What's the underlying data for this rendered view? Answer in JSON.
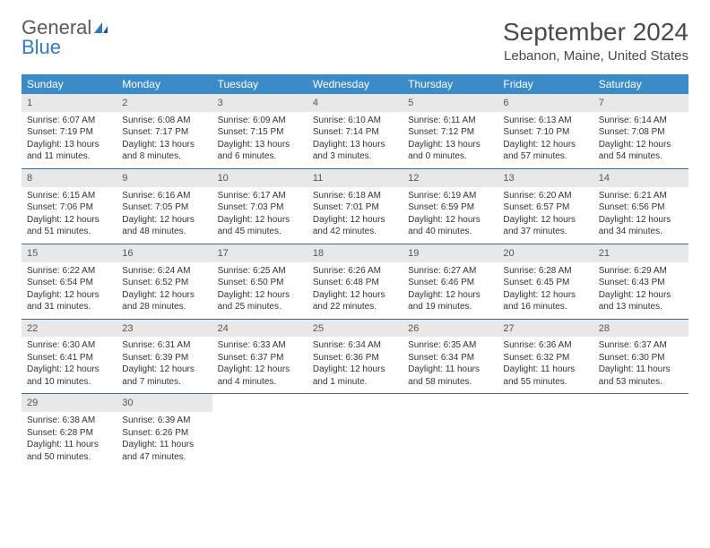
{
  "logo": {
    "text1": "General",
    "text2": "Blue"
  },
  "title": "September 2024",
  "location": "Lebanon, Maine, United States",
  "colors": {
    "header_bg": "#3b8bc9",
    "header_text": "#ffffff",
    "daynum_bg": "#e8e8e8",
    "rule": "#3b6a94",
    "logo_gray": "#5a5a5a",
    "logo_blue": "#2e7cbf"
  },
  "day_names": [
    "Sunday",
    "Monday",
    "Tuesday",
    "Wednesday",
    "Thursday",
    "Friday",
    "Saturday"
  ],
  "weeks": [
    [
      {
        "n": "1",
        "sr": "Sunrise: 6:07 AM",
        "ss": "Sunset: 7:19 PM",
        "dl": "Daylight: 13 hours and 11 minutes."
      },
      {
        "n": "2",
        "sr": "Sunrise: 6:08 AM",
        "ss": "Sunset: 7:17 PM",
        "dl": "Daylight: 13 hours and 8 minutes."
      },
      {
        "n": "3",
        "sr": "Sunrise: 6:09 AM",
        "ss": "Sunset: 7:15 PM",
        "dl": "Daylight: 13 hours and 6 minutes."
      },
      {
        "n": "4",
        "sr": "Sunrise: 6:10 AM",
        "ss": "Sunset: 7:14 PM",
        "dl": "Daylight: 13 hours and 3 minutes."
      },
      {
        "n": "5",
        "sr": "Sunrise: 6:11 AM",
        "ss": "Sunset: 7:12 PM",
        "dl": "Daylight: 13 hours and 0 minutes."
      },
      {
        "n": "6",
        "sr": "Sunrise: 6:13 AM",
        "ss": "Sunset: 7:10 PM",
        "dl": "Daylight: 12 hours and 57 minutes."
      },
      {
        "n": "7",
        "sr": "Sunrise: 6:14 AM",
        "ss": "Sunset: 7:08 PM",
        "dl": "Daylight: 12 hours and 54 minutes."
      }
    ],
    [
      {
        "n": "8",
        "sr": "Sunrise: 6:15 AM",
        "ss": "Sunset: 7:06 PM",
        "dl": "Daylight: 12 hours and 51 minutes."
      },
      {
        "n": "9",
        "sr": "Sunrise: 6:16 AM",
        "ss": "Sunset: 7:05 PM",
        "dl": "Daylight: 12 hours and 48 minutes."
      },
      {
        "n": "10",
        "sr": "Sunrise: 6:17 AM",
        "ss": "Sunset: 7:03 PM",
        "dl": "Daylight: 12 hours and 45 minutes."
      },
      {
        "n": "11",
        "sr": "Sunrise: 6:18 AM",
        "ss": "Sunset: 7:01 PM",
        "dl": "Daylight: 12 hours and 42 minutes."
      },
      {
        "n": "12",
        "sr": "Sunrise: 6:19 AM",
        "ss": "Sunset: 6:59 PM",
        "dl": "Daylight: 12 hours and 40 minutes."
      },
      {
        "n": "13",
        "sr": "Sunrise: 6:20 AM",
        "ss": "Sunset: 6:57 PM",
        "dl": "Daylight: 12 hours and 37 minutes."
      },
      {
        "n": "14",
        "sr": "Sunrise: 6:21 AM",
        "ss": "Sunset: 6:56 PM",
        "dl": "Daylight: 12 hours and 34 minutes."
      }
    ],
    [
      {
        "n": "15",
        "sr": "Sunrise: 6:22 AM",
        "ss": "Sunset: 6:54 PM",
        "dl": "Daylight: 12 hours and 31 minutes."
      },
      {
        "n": "16",
        "sr": "Sunrise: 6:24 AM",
        "ss": "Sunset: 6:52 PM",
        "dl": "Daylight: 12 hours and 28 minutes."
      },
      {
        "n": "17",
        "sr": "Sunrise: 6:25 AM",
        "ss": "Sunset: 6:50 PM",
        "dl": "Daylight: 12 hours and 25 minutes."
      },
      {
        "n": "18",
        "sr": "Sunrise: 6:26 AM",
        "ss": "Sunset: 6:48 PM",
        "dl": "Daylight: 12 hours and 22 minutes."
      },
      {
        "n": "19",
        "sr": "Sunrise: 6:27 AM",
        "ss": "Sunset: 6:46 PM",
        "dl": "Daylight: 12 hours and 19 minutes."
      },
      {
        "n": "20",
        "sr": "Sunrise: 6:28 AM",
        "ss": "Sunset: 6:45 PM",
        "dl": "Daylight: 12 hours and 16 minutes."
      },
      {
        "n": "21",
        "sr": "Sunrise: 6:29 AM",
        "ss": "Sunset: 6:43 PM",
        "dl": "Daylight: 12 hours and 13 minutes."
      }
    ],
    [
      {
        "n": "22",
        "sr": "Sunrise: 6:30 AM",
        "ss": "Sunset: 6:41 PM",
        "dl": "Daylight: 12 hours and 10 minutes."
      },
      {
        "n": "23",
        "sr": "Sunrise: 6:31 AM",
        "ss": "Sunset: 6:39 PM",
        "dl": "Daylight: 12 hours and 7 minutes."
      },
      {
        "n": "24",
        "sr": "Sunrise: 6:33 AM",
        "ss": "Sunset: 6:37 PM",
        "dl": "Daylight: 12 hours and 4 minutes."
      },
      {
        "n": "25",
        "sr": "Sunrise: 6:34 AM",
        "ss": "Sunset: 6:36 PM",
        "dl": "Daylight: 12 hours and 1 minute."
      },
      {
        "n": "26",
        "sr": "Sunrise: 6:35 AM",
        "ss": "Sunset: 6:34 PM",
        "dl": "Daylight: 11 hours and 58 minutes."
      },
      {
        "n": "27",
        "sr": "Sunrise: 6:36 AM",
        "ss": "Sunset: 6:32 PM",
        "dl": "Daylight: 11 hours and 55 minutes."
      },
      {
        "n": "28",
        "sr": "Sunrise: 6:37 AM",
        "ss": "Sunset: 6:30 PM",
        "dl": "Daylight: 11 hours and 53 minutes."
      }
    ],
    [
      {
        "n": "29",
        "sr": "Sunrise: 6:38 AM",
        "ss": "Sunset: 6:28 PM",
        "dl": "Daylight: 11 hours and 50 minutes."
      },
      {
        "n": "30",
        "sr": "Sunrise: 6:39 AM",
        "ss": "Sunset: 6:26 PM",
        "dl": "Daylight: 11 hours and 47 minutes."
      },
      null,
      null,
      null,
      null,
      null
    ]
  ]
}
